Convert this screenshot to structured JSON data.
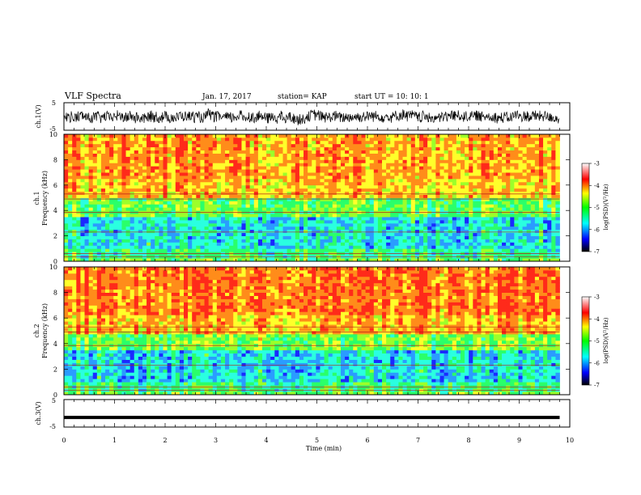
{
  "header": {
    "title": "VLF Spectra",
    "date": "Jan. 17, 2017",
    "station": "station= KAP",
    "start": "start  UT =   10: 10: 1"
  },
  "chart_data": [
    {
      "type": "line",
      "panel": "ch1-waveform",
      "ylabel": "ch.1(V)",
      "ylim": [
        -5,
        5
      ],
      "yticks": [
        "5",
        "-5"
      ],
      "xlim": [
        0,
        10
      ],
      "color": "#000000"
    },
    {
      "type": "heatmap",
      "panel": "ch1-spectrogram",
      "ylabel": "ch.1\nFrequency (kHz)",
      "ylabel_lines": [
        "ch.1",
        "Frequency (kHz)"
      ],
      "ylim": [
        0,
        10
      ],
      "yticks": [
        "0",
        "2",
        "4",
        "6",
        "8",
        "10"
      ],
      "xlim": [
        0,
        10
      ],
      "data_end_min": 9.8,
      "colorbar": {
        "label": "log(PSD)(V²/Hz)",
        "range": [
          -7,
          -3
        ],
        "ticks": [
          "-3",
          "-4",
          "-5",
          "-6",
          "-7"
        ]
      }
    },
    {
      "type": "heatmap",
      "panel": "ch2-spectrogram",
      "ylabel": "ch.2\nFrequency (kHz)",
      "ylabel_lines": [
        "ch.2",
        "Frequency (kHz)"
      ],
      "ylim": [
        0,
        10
      ],
      "yticks": [
        "0",
        "2",
        "4",
        "6",
        "8",
        "10"
      ],
      "xlim": [
        0,
        10
      ],
      "data_end_min": 9.8,
      "colorbar": {
        "label": "log(PSD)(V²/Hz)",
        "range": [
          -7,
          -3
        ],
        "ticks": [
          "-3",
          "-4",
          "-5",
          "-6",
          "-7"
        ]
      }
    },
    {
      "type": "line",
      "panel": "ch3-waveform",
      "ylabel": "ch.3(V)",
      "ylim": [
        -5,
        5
      ],
      "yticks": [
        "5",
        "-5"
      ],
      "xlim": [
        0,
        10
      ],
      "level": -1.5,
      "color": "#000000"
    }
  ],
  "xaxis": {
    "label": "Time (min)",
    "ticks": [
      "0",
      "1",
      "2",
      "3",
      "4",
      "5",
      "6",
      "7",
      "8",
      "9",
      "10"
    ]
  },
  "colors": {
    "colormap": [
      "#000000",
      "#0000ff",
      "#00ffff",
      "#00ff00",
      "#ffff00",
      "#ff0000",
      "#ffffff"
    ]
  }
}
